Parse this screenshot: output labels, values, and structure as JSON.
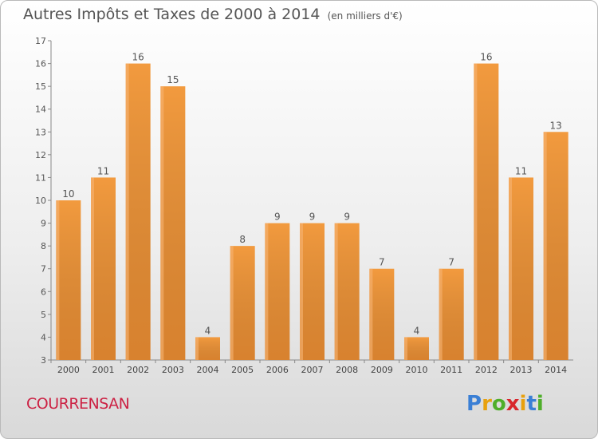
{
  "title": "Autres Impôts et Taxes de 2000 à 2014",
  "unit_note": "(en milliers d'€)",
  "commune": "COURRENSAN",
  "brand": {
    "letters": [
      "P",
      "r",
      "o",
      "x",
      "i",
      "t",
      "i"
    ],
    "colors": [
      "#3a7fd5",
      "#e8a10e",
      "#4fae2a",
      "#d8262c",
      "#e8a10e",
      "#3a7fd5",
      "#4fae2a"
    ]
  },
  "colors": {
    "bar": "#f08c2e",
    "bar_light": "#f6a95a",
    "bar_dark": "#d8701c",
    "commune": "#cc2244",
    "axis": "#555555"
  },
  "chart_data": {
    "type": "bar",
    "categories": [
      "2000",
      "2001",
      "2002",
      "2003",
      "2004",
      "2005",
      "2006",
      "2007",
      "2008",
      "2009",
      "2010",
      "2011",
      "2012",
      "2013",
      "2014"
    ],
    "values": [
      10,
      11,
      16,
      15,
      4,
      8,
      9,
      9,
      9,
      7,
      4,
      7,
      16,
      11,
      13
    ],
    "ylim": [
      3,
      17
    ],
    "yticks": [
      3,
      4,
      5,
      6,
      7,
      8,
      9,
      10,
      11,
      12,
      13,
      14,
      15,
      16,
      17
    ],
    "grid": false
  }
}
